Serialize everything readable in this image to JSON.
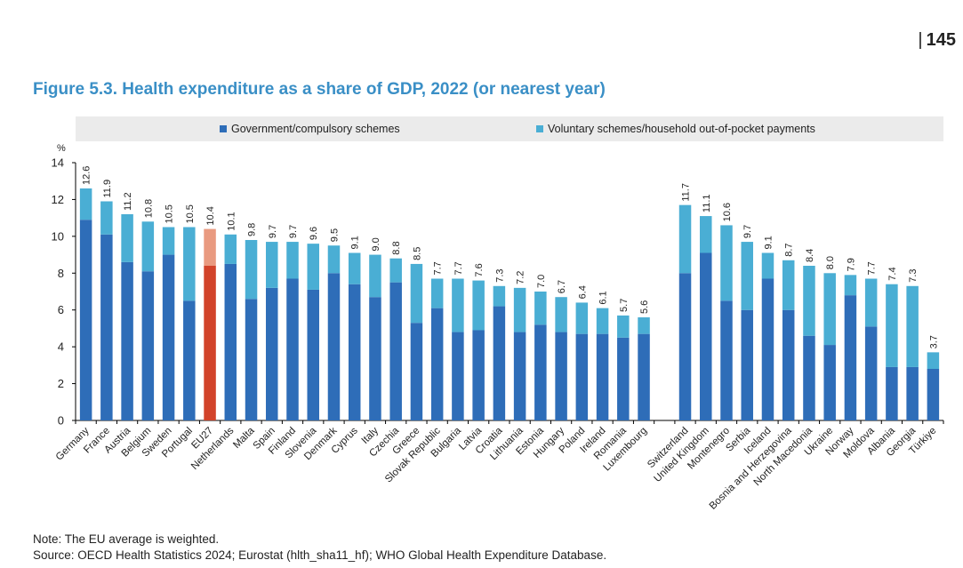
{
  "page_number": "145",
  "figure_title": "Figure 5.3. Health expenditure as a share of GDP, 2022 (or nearest year)",
  "note": "Note: The EU average is weighted.",
  "source": "Source: OECD Health Statistics 2024; Eurostat (hlth_sha11_hf); WHO Global Health Expenditure Database.",
  "colors": {
    "government": "#2e6db8",
    "voluntary": "#4aaed4",
    "eu_government": "#d2432a",
    "eu_voluntary": "#e99a80",
    "title": "#3a8fc6",
    "legend_bg": "#ebebeb"
  },
  "chart_data": {
    "type": "bar",
    "stacked": true,
    "ylabel": "%",
    "ylim": [
      0,
      14
    ],
    "yticks": [
      0,
      2,
      4,
      6,
      8,
      10,
      12,
      14
    ],
    "grid": false,
    "legend_position": "top",
    "highlight_category": "EU27",
    "categories": [
      "Germany",
      "France",
      "Austria",
      "Belgium",
      "Sweden",
      "Portugal",
      "EU27",
      "Netherlands",
      "Malta",
      "Spain",
      "Finland",
      "Slovenia",
      "Denmark",
      "Cyprus",
      "Italy",
      "Czechia",
      "Greece",
      "Slovak Republic",
      "Bulgaria",
      "Latvia",
      "Croatia",
      "Lithuania",
      "Estonia",
      "Hungary",
      "Poland",
      "Ireland",
      "Romania",
      "Luxembourg",
      "",
      "Switzerland",
      "United Kingdom",
      "Montenegro",
      "Serbia",
      "Iceland",
      "Bosnia and Herzegovina",
      "North Macedonia",
      "Ukraine",
      "Norway",
      "Moldova",
      "Albania",
      "Georgia",
      "Türkiye"
    ],
    "series": [
      {
        "name": "Government/compulsory schemes",
        "values": [
          10.9,
          10.1,
          8.6,
          8.1,
          9.0,
          6.5,
          8.4,
          8.5,
          6.6,
          7.2,
          7.7,
          7.1,
          8.0,
          7.4,
          6.7,
          7.5,
          5.3,
          6.1,
          4.8,
          4.9,
          6.2,
          4.8,
          5.2,
          4.8,
          4.7,
          4.7,
          4.5,
          4.7,
          null,
          8.0,
          9.1,
          6.5,
          6.0,
          7.7,
          6.0,
          4.6,
          4.1,
          6.8,
          5.1,
          2.9,
          2.9,
          2.8
        ]
      },
      {
        "name": "Voluntary schemes/household out-of-pocket payments",
        "values": [
          1.7,
          1.8,
          2.6,
          2.7,
          1.5,
          4.0,
          2.0,
          1.6,
          3.2,
          2.5,
          2.0,
          2.5,
          1.5,
          1.7,
          2.3,
          1.3,
          3.2,
          1.6,
          2.9,
          2.7,
          1.1,
          2.4,
          1.8,
          1.9,
          1.7,
          1.4,
          1.2,
          0.9,
          null,
          3.7,
          2.0,
          4.1,
          3.7,
          1.4,
          2.7,
          3.8,
          3.9,
          1.1,
          2.6,
          4.5,
          4.4,
          0.9
        ]
      }
    ],
    "totals": [
      "12.6",
      "11.9",
      "11.2",
      "10.8",
      "10.5",
      "10.5",
      "10.4",
      "10.1",
      "9.8",
      "9.7",
      "9.7",
      "9.6",
      "9.5",
      "9.1",
      "9.0",
      "8.8",
      "8.5",
      "7.7",
      "7.7",
      "7.6",
      "7.3",
      "7.2",
      "7.0",
      "6.7",
      "6.4",
      "6.1",
      "5.7",
      "5.6",
      "",
      "11.7",
      "11.1",
      "10.6",
      "9.7",
      "9.1",
      "8.7",
      "8.4",
      "8.0",
      "7.9",
      "7.7",
      "7.4",
      "7.3",
      "3.7"
    ]
  }
}
